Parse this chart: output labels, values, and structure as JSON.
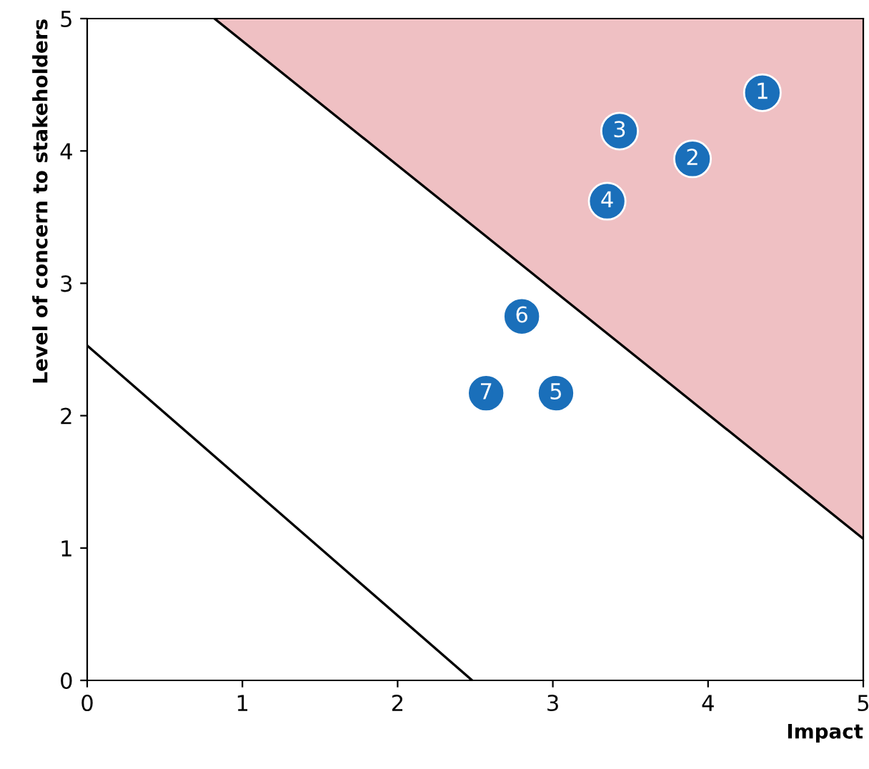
{
  "chart_data": {
    "type": "scatter",
    "xlabel": "Impact",
    "ylabel": "Level of concern to stakeholders",
    "xlim": [
      0,
      5
    ],
    "ylim": [
      0,
      5
    ],
    "xticks": [
      0,
      1,
      2,
      3,
      4,
      5
    ],
    "yticks": [
      0,
      1,
      2,
      3,
      4,
      5
    ],
    "grid": false,
    "series": [
      {
        "type": "area",
        "color": "#efc0c3",
        "x": [
          0.82,
          5
        ],
        "values": [
          5,
          1.07
        ]
      },
      {
        "type": "line",
        "color": "#000000",
        "x": [
          0,
          2.48
        ],
        "values": [
          2.53,
          0
        ]
      },
      {
        "color": "#1a6fba",
        "marker": "circle",
        "x": [
          4.35,
          3.9,
          3.43,
          3.35,
          3.02,
          2.8,
          2.57
        ],
        "values": [
          4.44,
          3.94,
          4.15,
          3.62,
          2.17,
          2.75,
          2.17
        ]
      }
    ],
    "annotations": [
      {
        "text": "1",
        "x": 4.35,
        "y": 4.44
      },
      {
        "text": "2",
        "x": 3.9,
        "y": 3.94
      },
      {
        "text": "3",
        "x": 3.43,
        "y": 4.15
      },
      {
        "text": "4",
        "x": 3.35,
        "y": 3.62
      },
      {
        "text": "5",
        "x": 3.02,
        "y": 2.17
      },
      {
        "text": "6",
        "x": 2.8,
        "y": 2.75
      },
      {
        "text": "7",
        "x": 2.57,
        "y": 2.17
      }
    ]
  }
}
